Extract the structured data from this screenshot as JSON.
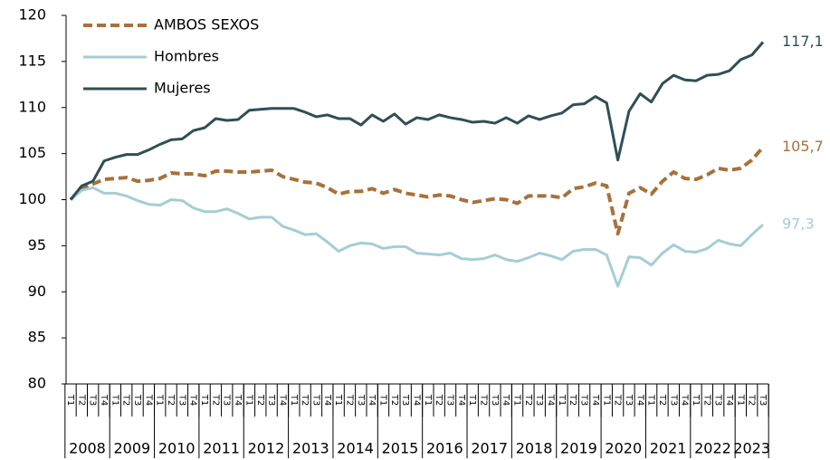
{
  "chart_data": {
    "type": "line",
    "categories": [
      "T1",
      "T2",
      "T3",
      "T4",
      "T1",
      "T2",
      "T3",
      "T4",
      "T1",
      "T2",
      "T3",
      "T4",
      "T1",
      "T2",
      "T3",
      "T4",
      "T1",
      "T2",
      "T3",
      "T4",
      "T1",
      "T2",
      "T3",
      "T4",
      "T1",
      "T2",
      "T3",
      "T4",
      "T1",
      "T2",
      "T3",
      "T4",
      "T1",
      "T2",
      "T3",
      "T4",
      "T1",
      "T2",
      "T3",
      "T4",
      "T1",
      "T2",
      "T3",
      "T4",
      "T1",
      "T2",
      "T3",
      "T4",
      "T1",
      "T2",
      "T3",
      "T4",
      "T1",
      "T2",
      "T3",
      "T4",
      "T1",
      "T2",
      "T3",
      "T4",
      "T1",
      "T2",
      "T3"
    ],
    "years": [
      "2008",
      "2009",
      "2010",
      "2011",
      "2012",
      "2013",
      "2014",
      "2015",
      "2016",
      "2017",
      "2018",
      "2019",
      "2020",
      "2021",
      "2022",
      "2023"
    ],
    "ylim": [
      80,
      120
    ],
    "yticks": [
      80,
      85,
      90,
      95,
      100,
      105,
      110,
      115,
      120
    ],
    "grid": false,
    "legend": "top-left",
    "series": [
      {
        "name": "AMBOS SEXOS",
        "color": "#a8713a",
        "dashed": true,
        "last_label": "105,7",
        "values": [
          100,
          101.2,
          101.7,
          102.2,
          102.3,
          102.4,
          102,
          102.1,
          102.3,
          102.9,
          102.8,
          102.8,
          102.6,
          103.1,
          103.1,
          103,
          103,
          103.1,
          103.2,
          102.5,
          102.2,
          101.9,
          101.8,
          101.3,
          100.6,
          100.9,
          100.9,
          101.2,
          100.7,
          101.1,
          100.7,
          100.5,
          100.3,
          100.5,
          100.4,
          100,
          99.7,
          99.9,
          100.1,
          100,
          99.6,
          100.4,
          100.4,
          100.4,
          100.2,
          101.2,
          101.4,
          101.8,
          101.5,
          96.3,
          100.7,
          101.3,
          100.6,
          102,
          103,
          102.3,
          102.2,
          102.7,
          103.4,
          103.2,
          103.4,
          104.3,
          105.7
        ]
      },
      {
        "name": "Hombres",
        "color": "#a6cdd6",
        "dashed": false,
        "last_label": "97,3",
        "values": [
          100,
          101,
          101.3,
          100.7,
          100.7,
          100.4,
          99.9,
          99.5,
          99.4,
          100,
          99.9,
          99.1,
          98.7,
          98.7,
          99,
          98.5,
          97.9,
          98.1,
          98.1,
          97.1,
          96.7,
          96.2,
          96.3,
          95.4,
          94.4,
          95,
          95.3,
          95.2,
          94.7,
          94.9,
          94.9,
          94.2,
          94.1,
          94,
          94.2,
          93.6,
          93.5,
          93.6,
          94,
          93.5,
          93.3,
          93.7,
          94.2,
          93.9,
          93.5,
          94.4,
          94.6,
          94.6,
          94,
          90.6,
          93.8,
          93.7,
          92.9,
          94.2,
          95.1,
          94.4,
          94.3,
          94.7,
          95.6,
          95.2,
          95,
          96.2,
          97.3
        ]
      },
      {
        "name": "Mujeres",
        "color": "#2f4f57",
        "dashed": false,
        "last_label": "117,1",
        "values": [
          100,
          101.5,
          102,
          104.2,
          104.6,
          104.9,
          104.9,
          105.4,
          106,
          106.5,
          106.6,
          107.5,
          107.8,
          108.8,
          108.6,
          108.7,
          109.7,
          109.8,
          109.9,
          109.9,
          109.9,
          109.5,
          109,
          109.2,
          108.8,
          108.8,
          108.1,
          109.2,
          108.5,
          109.3,
          108.2,
          108.9,
          108.7,
          109.2,
          108.9,
          108.7,
          108.4,
          108.5,
          108.3,
          108.9,
          108.3,
          109.1,
          108.7,
          109.1,
          109.4,
          110.3,
          110.4,
          111.2,
          110.5,
          104.3,
          109.6,
          111.5,
          110.6,
          112.6,
          113.5,
          113,
          112.9,
          113.5,
          113.6,
          114,
          115.2,
          115.7,
          117.1
        ]
      }
    ]
  }
}
